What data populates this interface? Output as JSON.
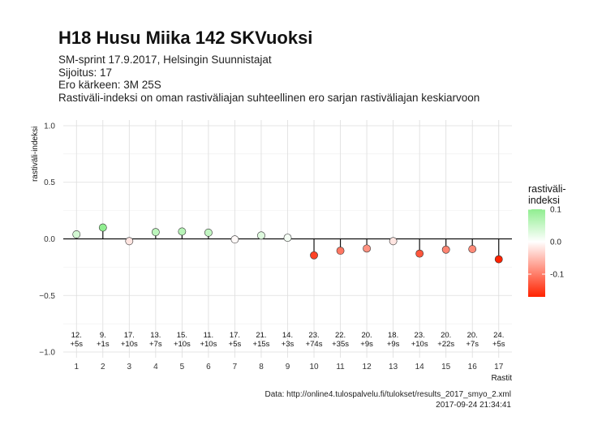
{
  "header": {
    "title": "H18 Husu Miika 142 SKVuoksi",
    "subtitle_lines": [
      "SM-sprint 17.9.2017, Helsingin Suunnistajat",
      "Sijoitus: 17",
      "Ero kärkeen: 3M 25S",
      "Rastiväli-indeksi on oman rastiväliajan suhteellinen ero sarjan rastiväliajan keskiarvoon"
    ]
  },
  "footer": {
    "source": "Data: http://online4.tulospalvelu.fi/tulokset/results_2017_smyo_2.xml",
    "timestamp": "2017-09-24 21:34:41"
  },
  "chart_data": {
    "type": "scatter",
    "title": "H18 Husu Miika 142 SKVuoksi",
    "xlabel": "Rastit",
    "ylabel": "rastiväli-indeksi",
    "x": [
      1,
      2,
      3,
      4,
      5,
      6,
      7,
      8,
      9,
      10,
      11,
      12,
      13,
      14,
      15,
      16,
      17
    ],
    "y": [
      0.04,
      0.1,
      -0.02,
      0.06,
      0.065,
      0.055,
      -0.005,
      0.03,
      0.01,
      -0.145,
      -0.105,
      -0.085,
      -0.02,
      -0.13,
      -0.095,
      -0.09,
      -0.18
    ],
    "annotations": [
      [
        "12.",
        "+5s"
      ],
      [
        "9.",
        "+1s"
      ],
      [
        "17.",
        "+10s"
      ],
      [
        "13.",
        "+7s"
      ],
      [
        "15.",
        "+10s"
      ],
      [
        "11.",
        "+10s"
      ],
      [
        "17.",
        "+5s"
      ],
      [
        "21.",
        "+15s"
      ],
      [
        "14.",
        "+3s"
      ],
      [
        "23.",
        "+74s"
      ],
      [
        "22.",
        "+35s"
      ],
      [
        "20.",
        "+9s"
      ],
      [
        "18.",
        "+9s"
      ],
      [
        "23.",
        "+10s"
      ],
      [
        "20.",
        "+22s"
      ],
      [
        "20.",
        "+7s"
      ],
      [
        "24.",
        "+5s"
      ]
    ],
    "annotation_y": -0.9,
    "xlim": [
      0.5,
      17.5
    ],
    "ylim": [
      -1.05,
      1.05
    ],
    "yticks": [
      -1.0,
      -0.5,
      0.0,
      0.5,
      1.0
    ],
    "ytick_labels": [
      "−1.0",
      "−0.5",
      "0.0",
      "0.5",
      "1.0"
    ],
    "xticks": [
      1,
      2,
      3,
      4,
      5,
      6,
      7,
      8,
      9,
      10,
      11,
      12,
      13,
      14,
      15,
      16,
      17
    ],
    "grid": true,
    "legend": {
      "title": "rastiväli-indeksi",
      "title_lines": [
        "rastiväli-",
        "indeksi"
      ],
      "placement": "right",
      "ticks": [
        0.1,
        0.0,
        -0.1
      ],
      "tick_labels": [
        "0.1",
        "0.0",
        "-0.1"
      ],
      "range": [
        -0.17,
        0.1
      ],
      "colors": {
        "high": "#90EE90",
        "mid": "#FFFFFF",
        "low": "#FF2200"
      }
    }
  }
}
